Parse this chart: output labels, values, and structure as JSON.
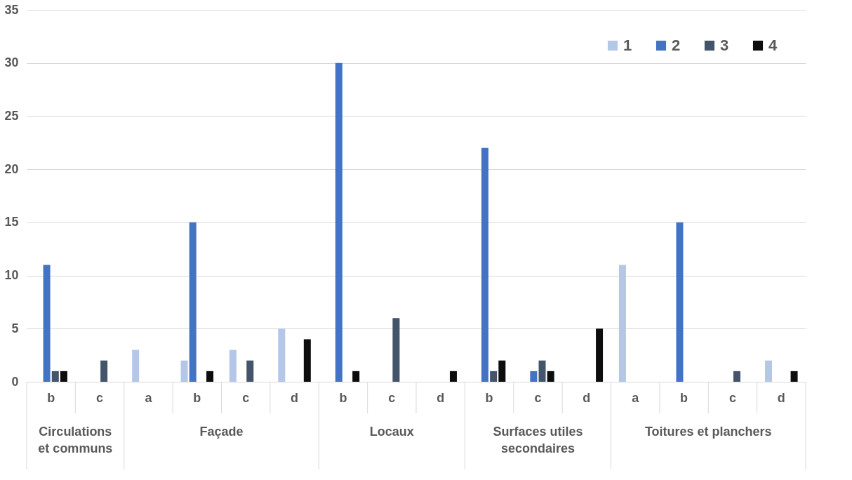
{
  "chart_data": {
    "type": "bar",
    "categories": [
      "b",
      "c",
      "a",
      "b",
      "c",
      "d",
      "b",
      "c",
      "d",
      "b",
      "c",
      "d",
      "a",
      "b",
      "c",
      "d"
    ],
    "annotations": [
      "Circulations et communs",
      "Façade",
      "Locaux",
      "Surfaces utiles secondaires",
      "Toitures et planchers"
    ],
    "series": [
      {
        "name": "1",
        "color": "#b4c7e7",
        "values": [
          0,
          0,
          3,
          2,
          3,
          5,
          0,
          0,
          0,
          0,
          0,
          0,
          11,
          0,
          0,
          2
        ]
      },
      {
        "name": "2",
        "color": "#4472c4",
        "values": [
          11,
          0,
          0,
          15,
          0,
          0,
          30,
          0,
          0,
          22,
          1,
          0,
          0,
          15,
          0,
          0
        ]
      },
      {
        "name": "3",
        "color": "#44546a",
        "values": [
          1,
          2,
          0,
          0,
          2,
          0,
          0,
          6,
          0,
          1,
          2,
          0,
          0,
          0,
          1,
          0
        ]
      },
      {
        "name": "4",
        "color": "#0d0d0d",
        "values": [
          1,
          0,
          0,
          1,
          0,
          4,
          1,
          0,
          1,
          2,
          1,
          5,
          0,
          0,
          0,
          1
        ]
      }
    ],
    "ylim": [
      0,
      35
    ],
    "yticks": [
      0,
      5,
      10,
      15,
      20,
      25,
      30,
      35
    ],
    "grid": "y",
    "legend": "top right"
  }
}
